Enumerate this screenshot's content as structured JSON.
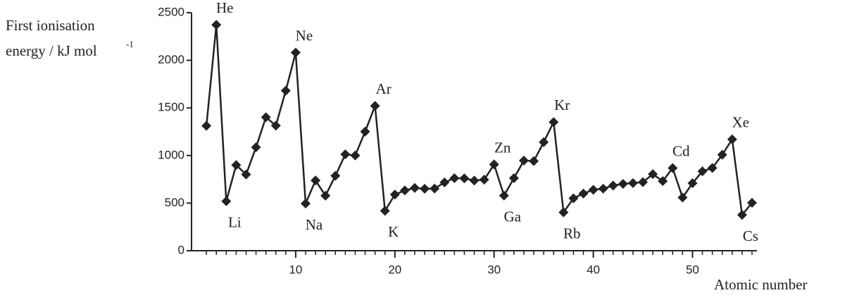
{
  "chart_data": {
    "type": "line",
    "y_label": {
      "lines": [
        "First ionisation",
        "energy / kJ mol"
      ],
      "superscript": "-1"
    },
    "x_label": "Atomic number",
    "x": [
      1,
      2,
      3,
      4,
      5,
      6,
      7,
      8,
      9,
      10,
      11,
      12,
      13,
      14,
      15,
      16,
      17,
      18,
      19,
      20,
      21,
      22,
      23,
      24,
      25,
      26,
      27,
      28,
      29,
      30,
      31,
      32,
      33,
      34,
      35,
      36,
      37,
      38,
      39,
      40,
      41,
      42,
      43,
      44,
      45,
      46,
      47,
      48,
      49,
      50,
      51,
      52,
      53,
      54,
      55,
      56
    ],
    "values": [
      1312,
      2372,
      520,
      900,
      801,
      1086,
      1402,
      1314,
      1681,
      2081,
      496,
      738,
      578,
      787,
      1012,
      1000,
      1251,
      1521,
      419,
      590,
      633,
      659,
      651,
      653,
      717,
      762,
      760,
      737,
      746,
      906,
      579,
      762,
      947,
      941,
      1140,
      1351,
      403,
      550,
      600,
      640,
      652,
      684,
      702,
      710,
      720,
      804,
      731,
      868,
      558,
      709,
      834,
      869,
      1008,
      1170,
      376,
      503
    ],
    "color": "#222222",
    "xlim": [
      -0.5,
      56.5
    ],
    "xticks": [
      10,
      20,
      30,
      40,
      50
    ],
    "ylim": [
      0,
      2500
    ],
    "yticks": [
      0,
      500,
      1000,
      1500,
      2000,
      2500
    ],
    "annotations": [
      {
        "text": "He",
        "x": 2
      },
      {
        "text": "Li",
        "x": 3
      },
      {
        "text": "Ne",
        "x": 10
      },
      {
        "text": "Na",
        "x": 11
      },
      {
        "text": "Ar",
        "x": 18
      },
      {
        "text": "K",
        "x": 19
      },
      {
        "text": "Zn",
        "x": 30
      },
      {
        "text": "Ga",
        "x": 31
      },
      {
        "text": "Kr",
        "x": 36
      },
      {
        "text": "Rb",
        "x": 37
      },
      {
        "text": "Cd",
        "x": 48
      },
      {
        "text": "Xe",
        "x": 54
      },
      {
        "text": "Cs",
        "x": 55
      }
    ]
  }
}
